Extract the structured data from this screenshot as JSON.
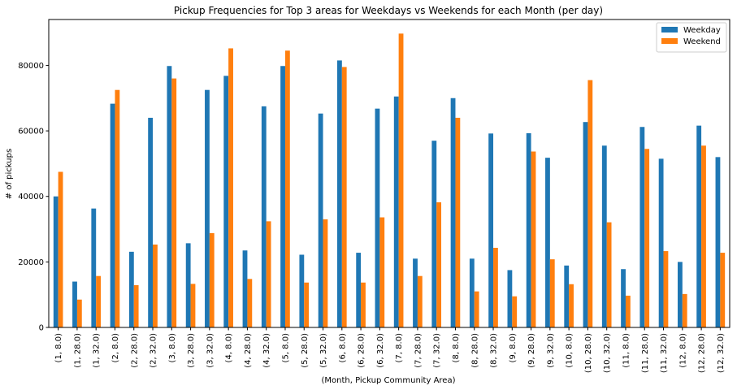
{
  "chart_data": {
    "type": "bar",
    "title": "Pickup Frequencies for Top 3 areas for Weekdays vs Weekends for each Month (per day)",
    "xlabel": "(Month, Pickup Community Area)",
    "ylabel": "# of pickups",
    "ylim": [
      0,
      94000
    ],
    "yticks": [
      0,
      20000,
      40000,
      60000,
      80000
    ],
    "ytick_labels": [
      "0",
      "20000",
      "40000",
      "60000",
      "80000"
    ],
    "grid": false,
    "legend_position": "top-right",
    "categories": [
      "(1, 8.0)",
      "(1, 28.0)",
      "(1, 32.0)",
      "(2, 8.0)",
      "(2, 28.0)",
      "(2, 32.0)",
      "(3, 8.0)",
      "(3, 28.0)",
      "(3, 32.0)",
      "(4, 8.0)",
      "(4, 28.0)",
      "(4, 32.0)",
      "(5, 8.0)",
      "(5, 28.0)",
      "(5, 32.0)",
      "(6, 8.0)",
      "(6, 28.0)",
      "(6, 32.0)",
      "(7, 8.0)",
      "(7, 28.0)",
      "(7, 32.0)",
      "(8, 8.0)",
      "(8, 28.0)",
      "(8, 32.0)",
      "(9, 8.0)",
      "(9, 28.0)",
      "(9, 32.0)",
      "(10, 8.0)",
      "(10, 28.0)",
      "(10, 32.0)",
      "(11, 8.0)",
      "(11, 28.0)",
      "(11, 32.0)",
      "(12, 8.0)",
      "(12, 28.0)",
      "(12, 32.0)"
    ],
    "series": [
      {
        "name": "Weekday",
        "color": "#1f77b4",
        "values": [
          40000,
          14000,
          36300,
          68300,
          23100,
          64000,
          79800,
          25700,
          72500,
          76800,
          23500,
          67500,
          79800,
          22200,
          65300,
          81500,
          22800,
          66800,
          70500,
          21000,
          57000,
          70000,
          21000,
          59200,
          17500,
          59300,
          51800,
          18900,
          62700,
          55500,
          17800,
          61200,
          51500,
          20000,
          61600,
          52000
        ]
      },
      {
        "name": "Weekend",
        "color": "#ff7f0e",
        "values": [
          47500,
          8500,
          15700,
          72500,
          12900,
          25300,
          76000,
          13300,
          28800,
          85200,
          14800,
          32400,
          84500,
          13700,
          33000,
          79500,
          13700,
          33600,
          89700,
          15700,
          38200,
          64000,
          11000,
          24300,
          9500,
          53700,
          20800,
          13200,
          75500,
          32100,
          9700,
          54500,
          23300,
          10200,
          55500,
          22800
        ]
      }
    ]
  }
}
